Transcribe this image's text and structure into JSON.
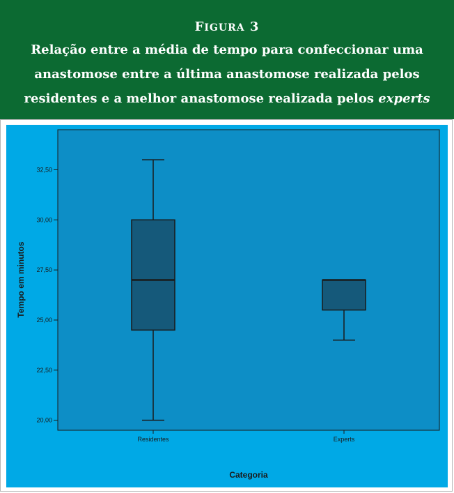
{
  "figure": {
    "label_first": "F",
    "label_rest": "IGURA",
    "label_number": " 3",
    "title_line1": "Relação entre a média de tempo para confeccionar uma",
    "title_line2": "anastomose entre a última anastomose realizada pelos",
    "title_line3_plain": "residentes e a melhor anastomose realizada pelos ",
    "title_line3_italic": "experts"
  },
  "colors": {
    "header_bg": "#0c6a32",
    "outer_bg": "#00a9e6",
    "plot_bg": "#0d8ec6",
    "box_fill": "#15597a",
    "line": "#1a1a1a"
  },
  "chart_data": {
    "type": "boxplot",
    "xlabel": "Categoria",
    "ylabel": "Tempo em minutos",
    "ylim": [
      19.5,
      34.5
    ],
    "yticks": [
      "32,50",
      "30,00",
      "27,50",
      "25,00",
      "22,50",
      "20,00"
    ],
    "ytick_values": [
      32.5,
      30.0,
      27.5,
      25.0,
      22.5,
      20.0
    ],
    "categories": [
      "Residentes",
      "Experts"
    ],
    "boxes": [
      {
        "category": "Residentes",
        "min": 20.0,
        "q1": 24.5,
        "median": 27.0,
        "q3": 30.0,
        "max": 33.0
      },
      {
        "category": "Experts",
        "min": 24.0,
        "q1": 25.5,
        "median": 27.0,
        "q3": 27.0,
        "max": 27.0
      }
    ],
    "legend": false,
    "grid": false
  }
}
